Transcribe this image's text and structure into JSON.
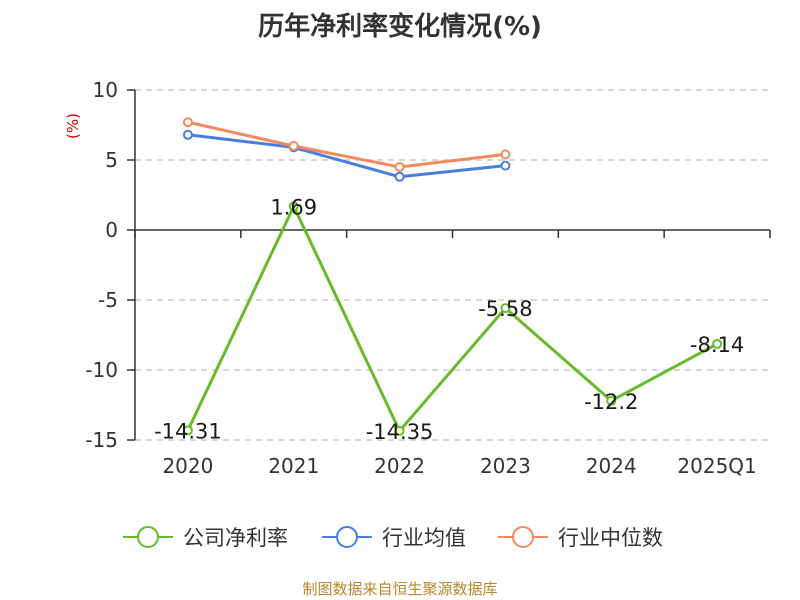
{
  "title": "历年净利率变化情况(%)",
  "source": "制图数据来自恒生聚源数据库",
  "colors": {
    "company": "#66bb2a",
    "industry_avg": "#4a7de0",
    "industry_median": "#f4895f",
    "grid": "#cccccc",
    "axis": "#333333",
    "unit": "#cc0000",
    "source": "#b8862b"
  },
  "chart_data": {
    "type": "line",
    "title": "历年净利率变化情况(%)",
    "ylabel": "(%)",
    "xlabel": "",
    "categories": [
      "2020",
      "2021",
      "2022",
      "2023",
      "2024",
      "2025Q1"
    ],
    "ylim": [
      -15,
      10
    ],
    "yticks": [
      10,
      5,
      0,
      -5,
      -10,
      -15
    ],
    "grid": true,
    "legend_position": "bottom",
    "series": [
      {
        "name": "公司净利率",
        "color_key": "company",
        "values": [
          -14.31,
          1.69,
          -14.35,
          -5.58,
          -12.2,
          -8.14
        ],
        "labels": [
          "-14.31",
          "1.69",
          "-14.35",
          "-5.58",
          "-12.2",
          "-8.14"
        ]
      },
      {
        "name": "行业均值",
        "color_key": "industry_avg",
        "values": [
          6.8,
          5.9,
          3.8,
          4.6,
          null,
          null
        ]
      },
      {
        "name": "行业中位数",
        "color_key": "industry_median",
        "values": [
          7.7,
          6.0,
          4.5,
          5.4,
          null,
          null
        ]
      }
    ]
  }
}
